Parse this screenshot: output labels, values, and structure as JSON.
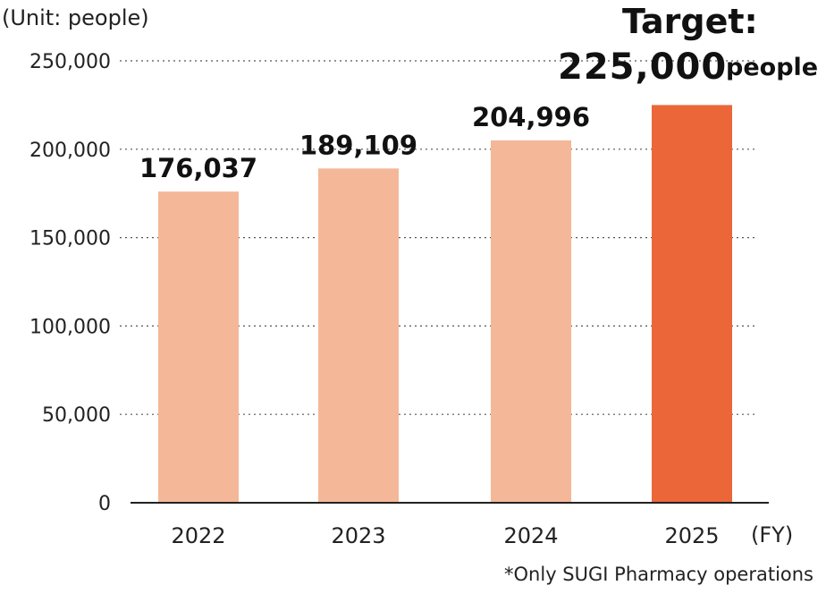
{
  "chart_data": {
    "type": "bar",
    "categories": [
      "2022",
      "2023",
      "2024",
      "2025"
    ],
    "values": [
      176037,
      189109,
      204996,
      225000
    ],
    "value_labels": [
      "176,037",
      "189,109",
      "204,996",
      ""
    ],
    "ylim": [
      0,
      250000
    ],
    "yticks": [
      0,
      50000,
      100000,
      150000,
      200000,
      250000
    ],
    "ytick_labels": [
      "0",
      "50,000",
      "100,000",
      "150,000",
      "200,000",
      "250,000"
    ],
    "ylabel": "(Unit: people)",
    "xlabel": "(FY)",
    "grid": "dotted horizontal",
    "bar_colors": [
      "#F4B898",
      "#F4B898",
      "#F4B898",
      "#EB673A"
    ],
    "target": {
      "prefix": "Target:",
      "value": "225,000",
      "unit": "people"
    },
    "footnote": "*Only SUGI Pharmacy operations"
  }
}
